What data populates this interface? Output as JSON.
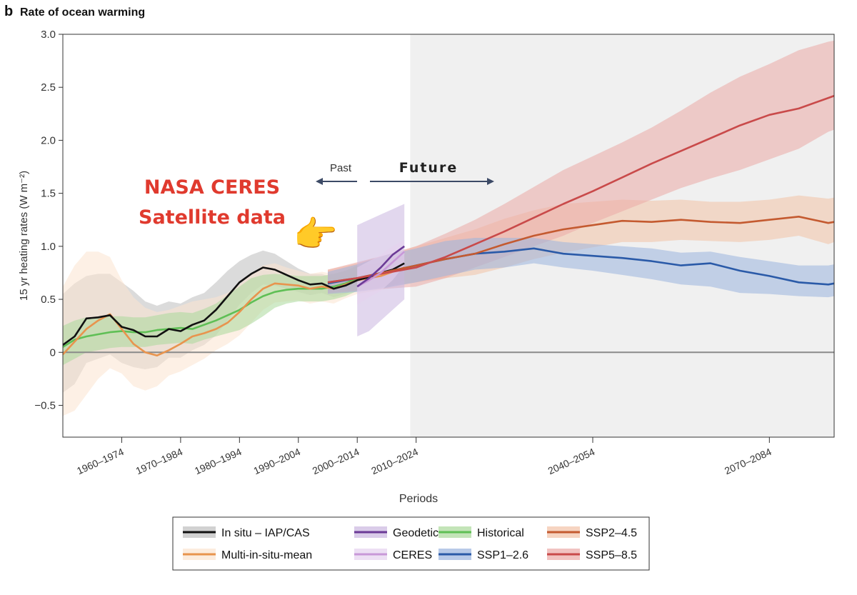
{
  "chart_data": {
    "type": "line",
    "panel_letter": "b",
    "title": "Rate of ocean warming",
    "xlabel": "Periods",
    "ylabel": "15 yr heating rates (W m⁻²)",
    "ylim": [
      -0.8,
      3.0
    ],
    "xlim": [
      1960,
      2091
    ],
    "yticks": [
      -0.5,
      0,
      0.5,
      1.0,
      1.5,
      2.0,
      2.5,
      3.0
    ],
    "ytick_labels": [
      "−0.5",
      "0",
      "0.5",
      "1.0",
      "1.5",
      "2.0",
      "2.5",
      "3.0"
    ],
    "xticks": [
      {
        "x": 1970,
        "label": "1960–1974"
      },
      {
        "x": 1980,
        "label": "1970–1984"
      },
      {
        "x": 1990,
        "label": "1980–1994"
      },
      {
        "x": 2000,
        "label": "1990–2004"
      },
      {
        "x": 2010,
        "label": "2000–2014"
      },
      {
        "x": 2020,
        "label": "2010–2024"
      },
      {
        "x": 2050,
        "label": "2040–2054"
      },
      {
        "x": 2080,
        "label": "2070–2084"
      }
    ],
    "future_shade_start": 2019,
    "annotations": {
      "past": "Past",
      "future": "Future",
      "overlay_line1": "NASA CERES",
      "overlay_line2": "Satellite data",
      "pointer_emoji": "👉"
    },
    "series": [
      {
        "name": "In situ – IAP/CAS",
        "color": "#111111",
        "band": "#bdbdbd",
        "x": [
          1960,
          1962,
          1964,
          1966,
          1968,
          1970,
          1972,
          1974,
          1976,
          1978,
          1980,
          1982,
          1984,
          1986,
          1988,
          1990,
          1992,
          1994,
          1996,
          1998,
          2000,
          2002,
          2004,
          2006,
          2008,
          2010,
          2012,
          2014,
          2016,
          2018
        ],
        "values": [
          0.07,
          0.15,
          0.32,
          0.33,
          0.35,
          0.24,
          0.21,
          0.15,
          0.15,
          0.22,
          0.2,
          0.26,
          0.3,
          0.4,
          0.53,
          0.66,
          0.74,
          0.8,
          0.78,
          0.73,
          0.68,
          0.64,
          0.65,
          0.6,
          0.63,
          0.68,
          0.71,
          0.75,
          0.78,
          0.84
        ],
        "upper": [
          0.55,
          0.65,
          0.72,
          0.74,
          0.74,
          0.66,
          0.58,
          0.48,
          0.44,
          0.48,
          0.46,
          0.52,
          0.56,
          0.66,
          0.77,
          0.86,
          0.92,
          0.96,
          0.93,
          0.86,
          0.79,
          0.74,
          0.74,
          0.7,
          0.72,
          0.77,
          0.8,
          0.84,
          0.87,
          0.92
        ],
        "lower": [
          -0.38,
          -0.3,
          -0.1,
          -0.06,
          -0.02,
          -0.1,
          -0.14,
          -0.16,
          -0.14,
          -0.05,
          -0.05,
          0.02,
          0.07,
          0.16,
          0.3,
          0.45,
          0.56,
          0.64,
          0.63,
          0.6,
          0.57,
          0.54,
          0.56,
          0.52,
          0.55,
          0.6,
          0.63,
          0.67,
          0.7,
          0.76
        ]
      },
      {
        "name": "Multi-in-situ-mean",
        "color": "#e8944e",
        "band": "#fbe4d0",
        "x": [
          1960,
          1962,
          1964,
          1966,
          1968,
          1970,
          1972,
          1974,
          1976,
          1978,
          1980,
          1982,
          1984,
          1986,
          1988,
          1990,
          1992,
          1994,
          1996,
          1998,
          2000,
          2002,
          2004,
          2006,
          2008,
          2010,
          2012,
          2014,
          2016,
          2018
        ],
        "values": [
          -0.02,
          0.1,
          0.22,
          0.3,
          0.36,
          0.22,
          0.08,
          0.0,
          -0.03,
          0.02,
          0.08,
          0.15,
          0.18,
          0.22,
          0.28,
          0.38,
          0.5,
          0.6,
          0.65,
          0.64,
          0.63,
          0.6,
          0.62,
          0.6,
          0.64,
          0.68,
          0.7,
          0.72,
          0.76,
          0.8
        ],
        "upper": [
          0.62,
          0.82,
          0.95,
          0.95,
          0.9,
          0.68,
          0.52,
          0.42,
          0.38,
          0.4,
          0.44,
          0.48,
          0.5,
          0.52,
          0.56,
          0.64,
          0.74,
          0.82,
          0.84,
          0.8,
          0.77,
          0.74,
          0.76,
          0.74,
          0.77,
          0.81,
          0.83,
          0.85,
          0.89,
          0.92
        ],
        "lower": [
          -0.6,
          -0.55,
          -0.4,
          -0.25,
          -0.15,
          -0.2,
          -0.32,
          -0.36,
          -0.32,
          -0.22,
          -0.18,
          -0.12,
          -0.06,
          0.02,
          0.08,
          0.16,
          0.28,
          0.4,
          0.47,
          0.48,
          0.49,
          0.46,
          0.48,
          0.46,
          0.51,
          0.55,
          0.57,
          0.59,
          0.63,
          0.68
        ]
      },
      {
        "name": "Historical",
        "color": "#5fbf55",
        "band": "#a9d99a",
        "x": [
          1960,
          1962,
          1964,
          1966,
          1968,
          1970,
          1972,
          1974,
          1976,
          1978,
          1980,
          1982,
          1984,
          1986,
          1988,
          1990,
          1992,
          1994,
          1996,
          1998,
          2000,
          2002,
          2004,
          2006,
          2008,
          2010
        ],
        "values": [
          0.05,
          0.12,
          0.15,
          0.17,
          0.19,
          0.2,
          0.19,
          0.19,
          0.21,
          0.22,
          0.23,
          0.22,
          0.26,
          0.3,
          0.35,
          0.4,
          0.47,
          0.53,
          0.57,
          0.59,
          0.6,
          0.6,
          0.6,
          0.62,
          0.65,
          0.7
        ],
        "upper": [
          0.25,
          0.3,
          0.33,
          0.33,
          0.34,
          0.34,
          0.33,
          0.33,
          0.35,
          0.37,
          0.38,
          0.37,
          0.41,
          0.46,
          0.54,
          0.62,
          0.7,
          0.73,
          0.74,
          0.73,
          0.72,
          0.72,
          0.72,
          0.74,
          0.77,
          0.82
        ],
        "lower": [
          -0.12,
          -0.06,
          0.0,
          0.02,
          0.04,
          0.05,
          0.05,
          0.05,
          0.07,
          0.08,
          0.09,
          0.08,
          0.12,
          0.15,
          0.18,
          0.21,
          0.27,
          0.34,
          0.42,
          0.46,
          0.48,
          0.48,
          0.48,
          0.5,
          0.53,
          0.58
        ]
      },
      {
        "name": "SSP2–4.5",
        "color": "#c45a30",
        "band": "#f2c2a6",
        "x": [
          2005,
          2010,
          2015,
          2020,
          2025,
          2030,
          2035,
          2040,
          2045,
          2050,
          2055,
          2060,
          2065,
          2070,
          2075,
          2080,
          2085,
          2090,
          2091
        ],
        "values": [
          0.66,
          0.7,
          0.76,
          0.82,
          0.88,
          0.93,
          1.02,
          1.1,
          1.16,
          1.2,
          1.24,
          1.23,
          1.25,
          1.23,
          1.22,
          1.25,
          1.28,
          1.22,
          1.23
        ],
        "upper": [
          0.78,
          0.84,
          0.92,
          1.0,
          1.08,
          1.16,
          1.26,
          1.34,
          1.4,
          1.42,
          1.44,
          1.43,
          1.44,
          1.42,
          1.42,
          1.44,
          1.48,
          1.45,
          1.46
        ],
        "lower": [
          0.55,
          0.58,
          0.62,
          0.66,
          0.7,
          0.73,
          0.8,
          0.88,
          0.94,
          0.99,
          1.04,
          1.04,
          1.06,
          1.05,
          1.04,
          1.06,
          1.1,
          1.02,
          1.04
        ]
      },
      {
        "name": "SSP5–8.5",
        "color": "#c94a4a",
        "band": "#ebaaa6",
        "x": [
          2005,
          2010,
          2015,
          2020,
          2025,
          2030,
          2035,
          2040,
          2045,
          2050,
          2055,
          2060,
          2065,
          2070,
          2075,
          2080,
          2085,
          2090,
          2091
        ],
        "values": [
          0.66,
          0.7,
          0.75,
          0.8,
          0.9,
          1.02,
          1.14,
          1.27,
          1.4,
          1.52,
          1.65,
          1.78,
          1.9,
          2.02,
          2.14,
          2.24,
          2.3,
          2.4,
          2.42
        ],
        "upper": [
          0.78,
          0.85,
          0.92,
          1.0,
          1.12,
          1.25,
          1.4,
          1.56,
          1.72,
          1.85,
          1.98,
          2.12,
          2.28,
          2.45,
          2.6,
          2.72,
          2.85,
          2.93,
          2.94
        ],
        "lower": [
          0.56,
          0.58,
          0.6,
          0.62,
          0.7,
          0.8,
          0.9,
          1.0,
          1.1,
          1.22,
          1.33,
          1.44,
          1.55,
          1.64,
          1.72,
          1.82,
          1.92,
          2.08,
          2.1
        ]
      },
      {
        "name": "SSP1–2.6",
        "color": "#2a5aa8",
        "band": "#9ab4de",
        "x": [
          2005,
          2010,
          2015,
          2020,
          2025,
          2030,
          2035,
          2040,
          2045,
          2050,
          2055,
          2060,
          2065,
          2070,
          2075,
          2080,
          2085,
          2090,
          2091
        ],
        "values": [
          0.65,
          0.7,
          0.76,
          0.82,
          0.88,
          0.93,
          0.95,
          0.98,
          0.93,
          0.91,
          0.89,
          0.86,
          0.82,
          0.84,
          0.77,
          0.72,
          0.66,
          0.64,
          0.65
        ],
        "upper": [
          0.76,
          0.83,
          0.92,
          0.98,
          1.05,
          1.08,
          1.08,
          1.08,
          1.04,
          1.02,
          1.0,
          0.98,
          0.94,
          0.95,
          0.9,
          0.86,
          0.82,
          0.82,
          0.83
        ],
        "lower": [
          0.55,
          0.57,
          0.61,
          0.66,
          0.72,
          0.78,
          0.8,
          0.84,
          0.8,
          0.77,
          0.73,
          0.69,
          0.64,
          0.62,
          0.56,
          0.55,
          0.53,
          0.52,
          0.53
        ]
      },
      {
        "name": "Geodetic",
        "color": "#6b3a96",
        "band": "#cbb6e0",
        "x": [
          2010,
          2012,
          2014,
          2016,
          2018
        ],
        "values": [
          0.62,
          0.7,
          0.8,
          0.92,
          1.0
        ],
        "upper": [
          1.2,
          1.25,
          1.3,
          1.35,
          1.4
        ],
        "lower": [
          0.15,
          0.2,
          0.3,
          0.4,
          0.5
        ]
      },
      {
        "name": "CERES",
        "color": "#c898d8",
        "band": "#e6d2ef",
        "x": [
          2010,
          2012,
          2014,
          2016,
          2018
        ],
        "values": [
          0.62,
          0.68,
          0.75,
          0.85,
          0.95
        ],
        "upper": [
          0.8,
          0.86,
          0.92,
          1.0,
          1.06
        ],
        "lower": [
          0.45,
          0.52,
          0.58,
          0.68,
          0.82
        ]
      }
    ],
    "legend": {
      "placement": "bottom-center",
      "entries": [
        {
          "label": "In situ – IAP/CAS",
          "series": "In situ – IAP/CAS"
        },
        {
          "label": "Multi-in-situ-mean",
          "series": "Multi-in-situ-mean"
        },
        {
          "label": "Geodetic",
          "series": "Geodetic"
        },
        {
          "label": "CERES",
          "series": "CERES"
        },
        {
          "label": "Historical",
          "series": "Historical"
        },
        {
          "label": "SSP1–2.6",
          "series": "SSP1–2.6"
        },
        {
          "label": "SSP2–4.5",
          "series": "SSP2–4.5"
        },
        {
          "label": "SSP5–8.5",
          "series": "SSP5–8.5"
        }
      ]
    }
  }
}
